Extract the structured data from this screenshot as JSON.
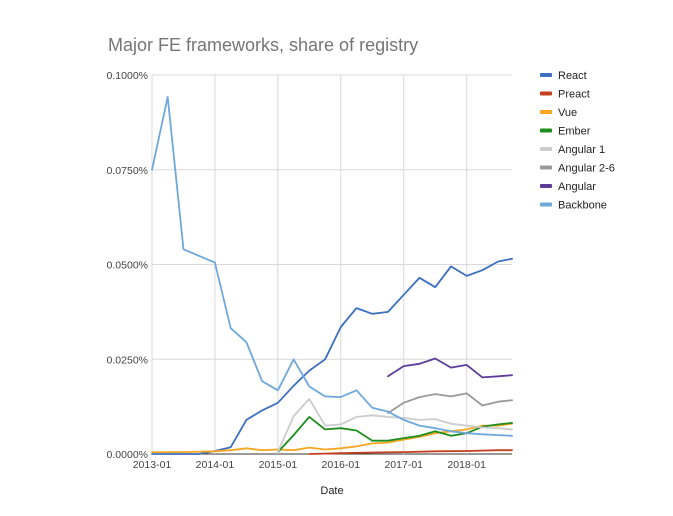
{
  "chart_data": {
    "type": "line",
    "title": "Major FE frameworks, share of registry",
    "xlabel": "Date",
    "ylabel": "",
    "ylim": [
      0,
      0.1
    ],
    "yticks": [
      0,
      0.025,
      0.05,
      0.075,
      0.1
    ],
    "ytick_labels": [
      "0.0000%",
      "0.0250%",
      "0.0500%",
      "0.0750%",
      "0.1000%"
    ],
    "xlim": [
      2013.0,
      2018.72
    ],
    "xticks": [
      2013.0,
      2014.0,
      2015.0,
      2016.0,
      2017.0,
      2018.0
    ],
    "xtick_labels": [
      "2013-01",
      "2014-01",
      "2015-01",
      "2016-01",
      "2017-01",
      "2018-01"
    ],
    "grid": true,
    "legend_position": "right",
    "series": [
      {
        "name": "React",
        "color": "#3c6fc0",
        "x": [
          2013.0,
          2013.25,
          2013.5,
          2013.75,
          2014.0,
          2014.25,
          2014.5,
          2014.75,
          2015.0,
          2015.25,
          2015.5,
          2015.75,
          2016.0,
          2016.25,
          2016.5,
          2016.75,
          2017.0,
          2017.25,
          2017.5,
          2017.75,
          2018.0,
          2018.25,
          2018.5,
          2018.72
        ],
        "values": [
          0.0,
          0.0,
          0.0,
          0.0,
          0.0008,
          0.0018,
          0.009,
          0.0115,
          0.0135,
          0.018,
          0.022,
          0.025,
          0.0335,
          0.0385,
          0.037,
          0.0375,
          0.042,
          0.0465,
          0.044,
          0.0495,
          0.047,
          0.0485,
          0.0508,
          0.0515
        ]
      },
      {
        "name": "Preact",
        "color": "#c4401f",
        "x": [
          2015.5,
          2016.0,
          2016.5,
          2017.0,
          2017.5,
          2018.0,
          2018.5,
          2018.72
        ],
        "values": [
          0.0,
          0.0002,
          0.0004,
          0.0005,
          0.0007,
          0.0008,
          0.001,
          0.001
        ]
      },
      {
        "name": "Vue",
        "color": "#f5a623",
        "x": [
          2013.0,
          2013.5,
          2014.0,
          2014.25,
          2014.5,
          2014.75,
          2015.0,
          2015.25,
          2015.5,
          2015.75,
          2016.0,
          2016.25,
          2016.5,
          2016.75,
          2017.0,
          2017.25,
          2017.5,
          2017.75,
          2018.0,
          2018.25,
          2018.5,
          2018.72
        ],
        "values": [
          0.0005,
          0.0005,
          0.0007,
          0.001,
          0.0015,
          0.001,
          0.0012,
          0.001,
          0.0017,
          0.0012,
          0.0015,
          0.002,
          0.0028,
          0.003,
          0.0038,
          0.0045,
          0.0055,
          0.006,
          0.0065,
          0.0075,
          0.0075,
          0.008
        ]
      },
      {
        "name": "Ember",
        "color": "#1e8e1e",
        "x": [
          2015.0,
          2015.25,
          2015.5,
          2015.75,
          2016.0,
          2016.25,
          2016.5,
          2016.75,
          2017.0,
          2017.25,
          2017.5,
          2017.75,
          2018.0,
          2018.25,
          2018.5,
          2018.72
        ],
        "values": [
          0.0005,
          0.005,
          0.0098,
          0.0065,
          0.0068,
          0.0062,
          0.0035,
          0.0035,
          0.0042,
          0.0048,
          0.006,
          0.0048,
          0.0055,
          0.0072,
          0.0078,
          0.0082
        ]
      },
      {
        "name": "Angular 1",
        "color": "#cccccc",
        "x": [
          2015.0,
          2015.25,
          2015.5,
          2015.75,
          2016.0,
          2016.25,
          2016.5,
          2016.75,
          2017.0,
          2017.25,
          2017.5,
          2017.75,
          2018.0,
          2018.25,
          2018.5,
          2018.72
        ],
        "values": [
          0.0005,
          0.01,
          0.0145,
          0.0075,
          0.0078,
          0.0098,
          0.0102,
          0.0098,
          0.0095,
          0.009,
          0.0092,
          0.008,
          0.0075,
          0.007,
          0.0068,
          0.0065
        ]
      },
      {
        "name": "Angular 2-6",
        "color": "#999999",
        "x": [
          2016.75,
          2017.0,
          2017.25,
          2017.5,
          2017.75,
          2018.0,
          2018.25,
          2018.5,
          2018.72
        ],
        "values": [
          0.0108,
          0.0135,
          0.015,
          0.0158,
          0.0152,
          0.016,
          0.0128,
          0.0138,
          0.0142
        ]
      },
      {
        "name": "Angular",
        "color": "#5e3c99",
        "x": [
          2016.75,
          2017.0,
          2017.25,
          2017.5,
          2017.75,
          2018.0,
          2018.25,
          2018.5,
          2018.72
        ],
        "values": [
          0.0205,
          0.0232,
          0.0238,
          0.0252,
          0.0228,
          0.0235,
          0.0202,
          0.0205,
          0.0208
        ]
      },
      {
        "name": "Backbone",
        "color": "#6fa8dc",
        "x": [
          2013.0,
          2013.25,
          2013.5,
          2014.0,
          2014.25,
          2014.5,
          2014.75,
          2015.0,
          2015.25,
          2015.5,
          2015.75,
          2016.0,
          2016.25,
          2016.5,
          2016.75,
          2017.0,
          2017.25,
          2017.5,
          2017.75,
          2018.0,
          2018.25,
          2018.5,
          2018.72
        ],
        "values": [
          0.075,
          0.0942,
          0.054,
          0.0505,
          0.0332,
          0.0295,
          0.0192,
          0.0168,
          0.025,
          0.0178,
          0.0152,
          0.015,
          0.0168,
          0.0122,
          0.0112,
          0.009,
          0.0075,
          0.0068,
          0.006,
          0.0055,
          0.0052,
          0.005,
          0.0048
        ]
      }
    ]
  }
}
